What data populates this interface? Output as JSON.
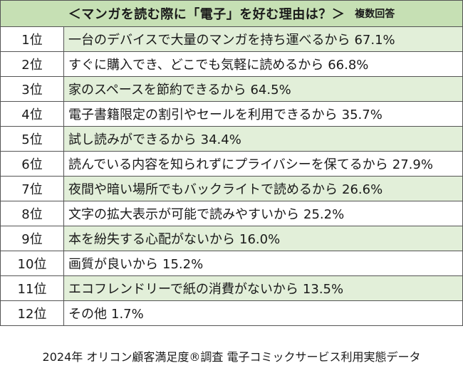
{
  "title": {
    "main": "＜マンガを読む際に「電子」を好む理由は？＞",
    "note": "複数回答"
  },
  "rows": [
    {
      "rank": "1位",
      "reason": "一台のデバイスで大量のマンガを持ち運べるから",
      "percent": "67.1%"
    },
    {
      "rank": "2位",
      "reason": "すぐに購入でき、どこでも気軽に読めるから",
      "percent": "66.8%"
    },
    {
      "rank": "3位",
      "reason": "家のスペースを節約できるから",
      "percent": "64.5%"
    },
    {
      "rank": "4位",
      "reason": "電子書籍限定の割引やセールを利用できるから",
      "percent": "35.7%"
    },
    {
      "rank": "5位",
      "reason": "試し読みができるから",
      "percent": "34.4%"
    },
    {
      "rank": "6位",
      "reason": "読んでいる内容を知られずにプライバシーを保てるから",
      "percent": "27.9%"
    },
    {
      "rank": "7位",
      "reason": "夜間や暗い場所でもバックライトで読めるから",
      "percent": "26.6%"
    },
    {
      "rank": "8位",
      "reason": "文字の拡大表示が可能で読みやすいから",
      "percent": "25.2%"
    },
    {
      "rank": "9位",
      "reason": "本を紛失する心配がないから",
      "percent": "16.0%"
    },
    {
      "rank": "10位",
      "reason": "画質が良いから",
      "percent": "15.2%"
    },
    {
      "rank": "11位",
      "reason": "エコフレンドリーで紙の消費がないから",
      "percent": "13.5%"
    },
    {
      "rank": "12位",
      "reason": "その他",
      "percent": "1.7%"
    }
  ],
  "footer": "2024年 オリコン顧客満足度®調査 電子コミックサービス利用実態データ",
  "colors": {
    "header_bg": "#c6e0b4",
    "alt_row_bg": "#e2efd9",
    "border": "#555555"
  }
}
